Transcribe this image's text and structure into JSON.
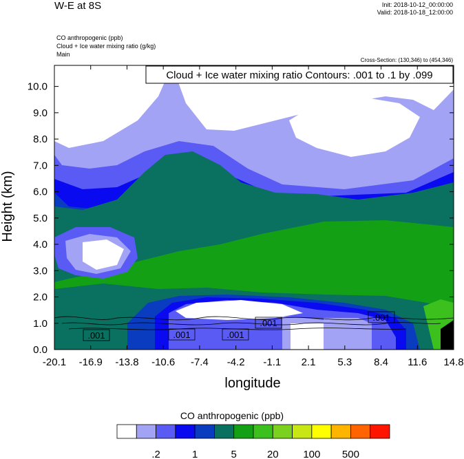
{
  "header": {
    "title": "W-E at 8S",
    "init": "Init: 2018-10-12_00:00:00",
    "valid": "Valid: 2018-10-18_12:00:00",
    "field1": "CO anthropogenic   (ppb)",
    "field2": "Cloud + Ice water mixing ratio   (g/kg)",
    "field3": "Main",
    "cross_section": "Cross-Section: (130,346) to (454,346)"
  },
  "chart_data": {
    "type": "heatmap",
    "xlabel": "longitude",
    "ylabel": "Height (km)",
    "x_ticks": [
      "-20.1",
      "-16.9",
      "-13.8",
      "-10.6",
      "-7.4",
      "-4.2",
      "-1.1",
      "2.1",
      "5.3",
      "8.4",
      "11.6",
      "14.8"
    ],
    "y_ticks": [
      "0.0",
      "1.0",
      "2.0",
      "3.0",
      "4.0",
      "5.0",
      "6.0",
      "7.0",
      "8.0",
      "9.0",
      "10.0"
    ],
    "xlim": [
      -20.1,
      14.8
    ],
    "ylim": [
      0,
      10.8
    ],
    "contour_note": "Cloud + Ice water mixing ratio Contours: .001 to .1 by .099",
    "contour_labels": [
      ".001",
      ".001",
      ".001",
      ".001",
      ".001"
    ],
    "colorbar": {
      "title": "CO anthropogenic  (ppb)",
      "colors": [
        "#ffffff",
        "#a3a3f5",
        "#5a5af5",
        "#0a0af0",
        "#0a3cc0",
        "#0a7060",
        "#14a014",
        "#3cc01e",
        "#7ad21e",
        "#c8e614",
        "#ffff00",
        "#ffb400",
        "#ff6400",
        "#ff1400"
      ],
      "labels": [
        ".2",
        "1",
        "5",
        "20",
        "100",
        "500"
      ]
    }
  }
}
